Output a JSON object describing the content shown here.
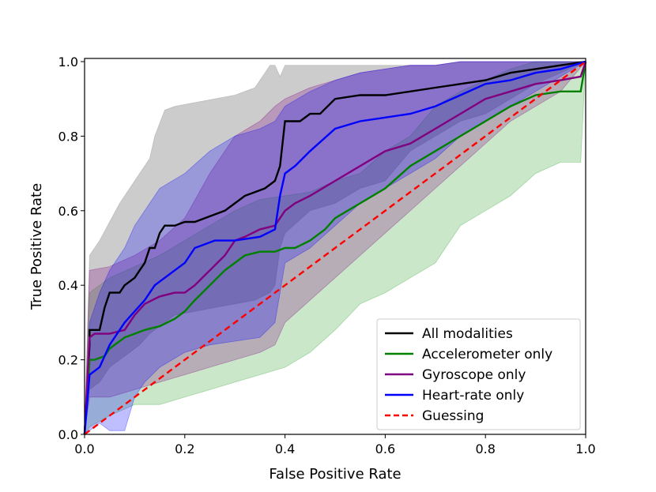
{
  "chart_data": {
    "type": "line",
    "title": "",
    "xlabel": "False Positive Rate",
    "ylabel": "True Positive Rate",
    "xlim": [
      0,
      1
    ],
    "ylim": [
      0,
      1
    ],
    "xticks": [
      0.0,
      0.2,
      0.4,
      0.6,
      0.8,
      1.0
    ],
    "yticks": [
      0.0,
      0.2,
      0.4,
      0.6,
      0.8,
      1.0
    ],
    "xtick_labels": [
      "0.0",
      "0.2",
      "0.4",
      "0.6",
      "0.8",
      "1.0"
    ],
    "ytick_labels": [
      "0.0",
      "0.2",
      "0.4",
      "0.6",
      "0.8",
      "1.0"
    ],
    "grid": false,
    "legend_position": "lower-right",
    "series": [
      {
        "name": "All modalities",
        "color": "#000000",
        "style": "solid",
        "x": [
          0,
          0.01,
          0.01,
          0.03,
          0.04,
          0.05,
          0.07,
          0.08,
          0.1,
          0.11,
          0.12,
          0.13,
          0.14,
          0.15,
          0.16,
          0.18,
          0.2,
          0.22,
          0.24,
          0.26,
          0.28,
          0.3,
          0.32,
          0.34,
          0.36,
          0.38,
          0.39,
          0.4,
          0.43,
          0.45,
          0.47,
          0.5,
          0.55,
          0.6,
          0.65,
          0.7,
          0.75,
          0.8,
          0.85,
          0.9,
          0.95,
          1.0
        ],
        "y": [
          0,
          0.24,
          0.28,
          0.28,
          0.34,
          0.38,
          0.38,
          0.4,
          0.42,
          0.44,
          0.46,
          0.5,
          0.5,
          0.54,
          0.56,
          0.56,
          0.57,
          0.57,
          0.58,
          0.59,
          0.6,
          0.62,
          0.64,
          0.65,
          0.66,
          0.68,
          0.72,
          0.84,
          0.84,
          0.86,
          0.86,
          0.9,
          0.91,
          0.91,
          0.92,
          0.93,
          0.94,
          0.95,
          0.97,
          0.98,
          0.99,
          1.0
        ]
      },
      {
        "name": "Accelerometer only",
        "color": "#008000",
        "style": "solid",
        "x": [
          0,
          0.01,
          0.02,
          0.04,
          0.05,
          0.08,
          0.1,
          0.12,
          0.15,
          0.18,
          0.2,
          0.22,
          0.25,
          0.28,
          0.3,
          0.32,
          0.35,
          0.38,
          0.4,
          0.42,
          0.45,
          0.48,
          0.5,
          0.55,
          0.6,
          0.65,
          0.7,
          0.75,
          0.8,
          0.85,
          0.9,
          0.95,
          0.99,
          1.0
        ],
        "y": [
          0,
          0.2,
          0.2,
          0.21,
          0.23,
          0.26,
          0.27,
          0.28,
          0.29,
          0.31,
          0.33,
          0.36,
          0.4,
          0.44,
          0.46,
          0.48,
          0.49,
          0.49,
          0.5,
          0.5,
          0.52,
          0.55,
          0.58,
          0.62,
          0.66,
          0.72,
          0.76,
          0.8,
          0.84,
          0.88,
          0.91,
          0.92,
          0.92,
          1.0
        ]
      },
      {
        "name": "Gyroscope only",
        "color": "#800080",
        "style": "solid",
        "x": [
          0,
          0.01,
          0.02,
          0.05,
          0.08,
          0.1,
          0.12,
          0.15,
          0.18,
          0.2,
          0.22,
          0.25,
          0.28,
          0.3,
          0.32,
          0.35,
          0.38,
          0.4,
          0.42,
          0.45,
          0.5,
          0.55,
          0.6,
          0.65,
          0.7,
          0.75,
          0.8,
          0.85,
          0.9,
          0.95,
          0.99,
          1.0
        ],
        "y": [
          0,
          0.26,
          0.27,
          0.27,
          0.28,
          0.32,
          0.35,
          0.37,
          0.38,
          0.38,
          0.4,
          0.44,
          0.48,
          0.52,
          0.53,
          0.55,
          0.56,
          0.6,
          0.62,
          0.64,
          0.68,
          0.72,
          0.76,
          0.78,
          0.82,
          0.86,
          0.9,
          0.92,
          0.94,
          0.95,
          0.96,
          1.0
        ]
      },
      {
        "name": "Heart-rate only",
        "color": "#0000ff",
        "style": "solid",
        "x": [
          0,
          0.01,
          0.03,
          0.05,
          0.07,
          0.08,
          0.1,
          0.12,
          0.14,
          0.16,
          0.18,
          0.2,
          0.22,
          0.24,
          0.26,
          0.28,
          0.3,
          0.35,
          0.38,
          0.39,
          0.4,
          0.42,
          0.45,
          0.5,
          0.55,
          0.6,
          0.65,
          0.7,
          0.75,
          0.8,
          0.85,
          0.9,
          0.95,
          1.0
        ],
        "y": [
          0,
          0.16,
          0.18,
          0.24,
          0.28,
          0.3,
          0.33,
          0.36,
          0.4,
          0.42,
          0.44,
          0.46,
          0.5,
          0.51,
          0.52,
          0.52,
          0.52,
          0.53,
          0.55,
          0.64,
          0.7,
          0.72,
          0.76,
          0.82,
          0.84,
          0.85,
          0.86,
          0.88,
          0.91,
          0.94,
          0.95,
          0.97,
          0.98,
          1.0
        ]
      },
      {
        "name": "Guessing",
        "color": "#ff0000",
        "style": "dashed",
        "x": [
          0,
          1
        ],
        "y": [
          0,
          1
        ]
      }
    ],
    "bands": [
      {
        "series": "All modalities",
        "color": "#808080",
        "opacity": 0.4,
        "x": [
          0,
          0.01,
          0.03,
          0.05,
          0.07,
          0.09,
          0.11,
          0.13,
          0.14,
          0.16,
          0.18,
          0.22,
          0.26,
          0.3,
          0.34,
          0.37,
          0.38,
          0.39,
          0.4,
          0.45,
          0.5,
          0.55,
          0.6,
          0.65,
          0.7,
          0.75,
          0.8,
          0.85,
          0.9,
          0.95,
          1.0
        ],
        "upper": [
          0,
          0.48,
          0.52,
          0.57,
          0.62,
          0.66,
          0.7,
          0.74,
          0.8,
          0.87,
          0.88,
          0.89,
          0.9,
          0.91,
          0.93,
          0.99,
          0.99,
          0.96,
          0.99,
          0.99,
          0.99,
          0.99,
          0.99,
          0.99,
          0.99,
          1.0,
          1.0,
          1.0,
          1.0,
          1.0,
          1.0
        ],
        "lower": [
          0,
          0.12,
          0.14,
          0.18,
          0.2,
          0.22,
          0.24,
          0.27,
          0.28,
          0.3,
          0.32,
          0.33,
          0.34,
          0.35,
          0.36,
          0.38,
          0.4,
          0.5,
          0.54,
          0.6,
          0.62,
          0.66,
          0.68,
          0.76,
          0.8,
          0.84,
          0.86,
          0.9,
          0.94,
          0.97,
          1.0
        ]
      },
      {
        "series": "Accelerometer only",
        "color": "#2ca02c",
        "opacity": 0.25,
        "x": [
          0,
          0.01,
          0.05,
          0.1,
          0.15,
          0.2,
          0.25,
          0.3,
          0.35,
          0.4,
          0.45,
          0.5,
          0.55,
          0.6,
          0.65,
          0.7,
          0.75,
          0.8,
          0.85,
          0.9,
          0.95,
          0.99,
          1.0
        ],
        "upper": [
          0,
          0.38,
          0.42,
          0.45,
          0.48,
          0.52,
          0.56,
          0.6,
          0.63,
          0.64,
          0.65,
          0.68,
          0.7,
          0.76,
          0.8,
          0.88,
          0.92,
          0.95,
          0.98,
          1.0,
          1.0,
          1.0,
          1.0
        ],
        "lower": [
          0,
          0.02,
          0.05,
          0.08,
          0.08,
          0.1,
          0.12,
          0.14,
          0.16,
          0.18,
          0.22,
          0.28,
          0.35,
          0.38,
          0.42,
          0.46,
          0.56,
          0.6,
          0.64,
          0.7,
          0.73,
          0.73,
          1.0
        ]
      },
      {
        "series": "Gyroscope only",
        "color": "#800080",
        "opacity": 0.25,
        "x": [
          0,
          0.01,
          0.05,
          0.1,
          0.15,
          0.2,
          0.25,
          0.3,
          0.35,
          0.38,
          0.4,
          0.45,
          0.5,
          0.55,
          0.6,
          0.65,
          0.7,
          0.75,
          0.8,
          0.85,
          0.9,
          0.95,
          1.0
        ],
        "upper": [
          0,
          0.44,
          0.45,
          0.48,
          0.52,
          0.58,
          0.7,
          0.8,
          0.84,
          0.88,
          0.9,
          0.93,
          0.95,
          0.97,
          0.98,
          0.99,
          0.99,
          1.0,
          1.0,
          1.0,
          1.0,
          1.0,
          1.0
        ],
        "lower": [
          0,
          0.1,
          0.1,
          0.12,
          0.14,
          0.16,
          0.18,
          0.2,
          0.22,
          0.24,
          0.3,
          0.36,
          0.42,
          0.48,
          0.54,
          0.6,
          0.66,
          0.72,
          0.78,
          0.84,
          0.88,
          0.92,
          1.0
        ]
      },
      {
        "series": "Heart-rate only",
        "color": "#0000ff",
        "opacity": 0.25,
        "x": [
          0,
          0.01,
          0.03,
          0.05,
          0.08,
          0.1,
          0.12,
          0.15,
          0.2,
          0.25,
          0.3,
          0.35,
          0.38,
          0.4,
          0.45,
          0.5,
          0.55,
          0.6,
          0.65,
          0.7,
          0.75,
          0.8,
          0.85,
          0.9,
          0.95,
          1.0
        ],
        "upper": [
          0,
          0.3,
          0.38,
          0.44,
          0.5,
          0.56,
          0.6,
          0.66,
          0.7,
          0.76,
          0.8,
          0.82,
          0.84,
          0.88,
          0.92,
          0.95,
          0.97,
          0.98,
          0.99,
          0.99,
          1.0,
          1.0,
          1.0,
          1.0,
          1.0,
          1.0
        ],
        "lower": [
          0,
          0.01,
          0.03,
          0.01,
          0.01,
          0.1,
          0.14,
          0.18,
          0.22,
          0.24,
          0.25,
          0.26,
          0.3,
          0.46,
          0.5,
          0.56,
          0.62,
          0.66,
          0.7,
          0.74,
          0.8,
          0.84,
          0.88,
          0.92,
          0.96,
          1.0
        ]
      }
    ]
  }
}
